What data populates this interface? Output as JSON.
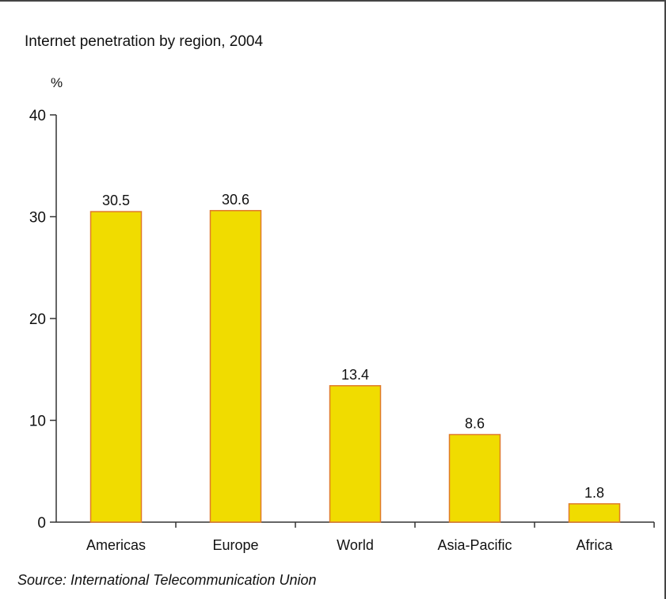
{
  "colors": {
    "bar_fill": "#f0dc00",
    "bar_stroke": "#e07a2a",
    "axis": "#333333"
  },
  "chart_data": {
    "type": "bar",
    "title": "Internet penetration by region, 2004",
    "ylabel": "%",
    "xlabel": "",
    "categories": [
      "Americas",
      "Europe",
      "World",
      "Asia-Pacific",
      "Africa"
    ],
    "values": [
      30.5,
      30.6,
      13.4,
      8.6,
      1.8
    ],
    "value_labels": [
      "30.5",
      "30.6",
      "13.4",
      "8.6",
      "1.8"
    ],
    "ylim": [
      0,
      40
    ],
    "yticks": [
      0,
      10,
      20,
      30,
      40
    ],
    "grid": false,
    "source": "Source: International Telecommunication Union"
  }
}
